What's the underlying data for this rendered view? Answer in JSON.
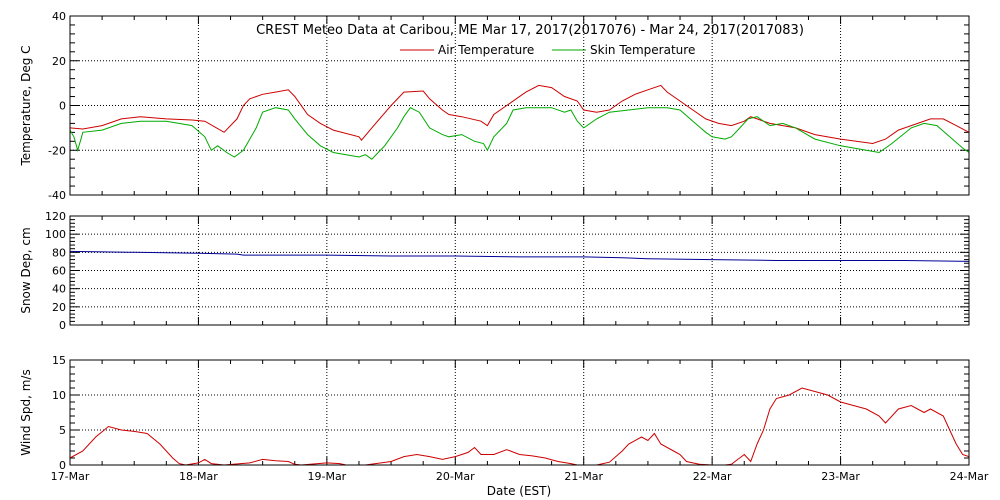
{
  "chart_data": {
    "type": "line",
    "title": "CREST Meteo Data at Caribou, ME   Mar 17, 2017(2017076) - Mar 24, 2017(2017083)",
    "xlabel": "Date (EST)",
    "x_ticks": [
      "17-Mar",
      "18-Mar",
      "19-Mar",
      "20-Mar",
      "21-Mar",
      "22-Mar",
      "23-Mar",
      "24-Mar"
    ],
    "x_range_days": [
      0,
      7
    ],
    "grid": true,
    "panels": [
      {
        "ylabel": "Temperature, Deg C",
        "ylim": [
          -40,
          40
        ],
        "yticks": [
          -40,
          -20,
          0,
          20,
          40
        ],
        "legend": "top-center",
        "series": [
          {
            "name": "Air Temperature",
            "color": "#cc0000",
            "points": [
              [
                0,
                -10
              ],
              [
                0.1,
                -10.5
              ],
              [
                0.25,
                -9
              ],
              [
                0.4,
                -6
              ],
              [
                0.55,
                -5
              ],
              [
                0.75,
                -6
              ],
              [
                0.95,
                -6.5
              ],
              [
                1.05,
                -7
              ],
              [
                1.2,
                -12
              ],
              [
                1.3,
                -6
              ],
              [
                1.35,
                0
              ],
              [
                1.4,
                3
              ],
              [
                1.5,
                5
              ],
              [
                1.6,
                6
              ],
              [
                1.7,
                7
              ],
              [
                1.75,
                4
              ],
              [
                1.85,
                -4
              ],
              [
                1.95,
                -8
              ],
              [
                2.05,
                -11
              ],
              [
                2.25,
                -14
              ],
              [
                2.27,
                -15.5
              ],
              [
                2.35,
                -10
              ],
              [
                2.5,
                0
              ],
              [
                2.6,
                6
              ],
              [
                2.75,
                6.5
              ],
              [
                2.8,
                3
              ],
              [
                2.9,
                -2
              ],
              [
                2.95,
                -4
              ],
              [
                3.05,
                -5
              ],
              [
                3.2,
                -7
              ],
              [
                3.25,
                -9
              ],
              [
                3.3,
                -4
              ],
              [
                3.4,
                0
              ],
              [
                3.55,
                6
              ],
              [
                3.65,
                9
              ],
              [
                3.75,
                8
              ],
              [
                3.85,
                4
              ],
              [
                3.95,
                2
              ],
              [
                4.0,
                -2
              ],
              [
                4.1,
                -3
              ],
              [
                4.2,
                -2
              ],
              [
                4.3,
                2
              ],
              [
                4.4,
                5
              ],
              [
                4.5,
                7
              ],
              [
                4.6,
                9
              ],
              [
                4.65,
                6
              ],
              [
                4.75,
                2
              ],
              [
                4.85,
                -2
              ],
              [
                4.95,
                -6
              ],
              [
                5.05,
                -8
              ],
              [
                5.15,
                -9
              ],
              [
                5.25,
                -7
              ],
              [
                5.3,
                -5
              ],
              [
                5.35,
                -6
              ],
              [
                5.45,
                -8
              ],
              [
                5.55,
                -9
              ],
              [
                5.65,
                -10
              ],
              [
                5.8,
                -13
              ],
              [
                6.0,
                -15
              ],
              [
                6.25,
                -17
              ],
              [
                6.35,
                -15
              ],
              [
                6.45,
                -11
              ],
              [
                6.55,
                -9
              ],
              [
                6.7,
                -6
              ],
              [
                6.8,
                -6
              ],
              [
                6.9,
                -9
              ],
              [
                7,
                -12
              ]
            ]
          },
          {
            "name": "Skin Temperature",
            "color": "#00aa00",
            "points": [
              [
                0,
                -11
              ],
              [
                0.03,
                -14
              ],
              [
                0.06,
                -20
              ],
              [
                0.09,
                -14
              ],
              [
                0.1,
                -12
              ],
              [
                0.25,
                -11
              ],
              [
                0.4,
                -8
              ],
              [
                0.55,
                -7
              ],
              [
                0.75,
                -7
              ],
              [
                0.95,
                -9
              ],
              [
                1.05,
                -14
              ],
              [
                1.1,
                -20
              ],
              [
                1.15,
                -18
              ],
              [
                1.22,
                -21
              ],
              [
                1.28,
                -23
              ],
              [
                1.35,
                -20
              ],
              [
                1.45,
                -10
              ],
              [
                1.5,
                -3
              ],
              [
                1.6,
                -1
              ],
              [
                1.7,
                -2
              ],
              [
                1.75,
                -6
              ],
              [
                1.85,
                -13
              ],
              [
                1.95,
                -18
              ],
              [
                2.05,
                -21
              ],
              [
                2.15,
                -22
              ],
              [
                2.25,
                -23
              ],
              [
                2.3,
                -22
              ],
              [
                2.35,
                -24
              ],
              [
                2.45,
                -18
              ],
              [
                2.55,
                -10
              ],
              [
                2.6,
                -5
              ],
              [
                2.65,
                -1
              ],
              [
                2.72,
                -3
              ],
              [
                2.8,
                -10
              ],
              [
                2.9,
                -13
              ],
              [
                2.95,
                -14
              ],
              [
                3.05,
                -13
              ],
              [
                3.15,
                -16
              ],
              [
                3.22,
                -17
              ],
              [
                3.25,
                -20
              ],
              [
                3.3,
                -14
              ],
              [
                3.4,
                -8
              ],
              [
                3.45,
                -2
              ],
              [
                3.55,
                -1
              ],
              [
                3.65,
                -1
              ],
              [
                3.75,
                -1
              ],
              [
                3.85,
                -3
              ],
              [
                3.9,
                -2
              ],
              [
                3.95,
                -7
              ],
              [
                4.0,
                -10
              ],
              [
                4.1,
                -6
              ],
              [
                4.2,
                -3
              ],
              [
                4.35,
                -2
              ],
              [
                4.5,
                -1
              ],
              [
                4.65,
                -1
              ],
              [
                4.75,
                -2
              ],
              [
                4.85,
                -7
              ],
              [
                4.95,
                -12
              ],
              [
                5.0,
                -14
              ],
              [
                5.1,
                -15
              ],
              [
                5.15,
                -14
              ],
              [
                5.2,
                -11
              ],
              [
                5.28,
                -6
              ],
              [
                5.35,
                -5
              ],
              [
                5.45,
                -9
              ],
              [
                5.55,
                -8
              ],
              [
                5.65,
                -10
              ],
              [
                5.8,
                -15
              ],
              [
                6.0,
                -18
              ],
              [
                6.2,
                -20
              ],
              [
                6.3,
                -21
              ],
              [
                6.4,
                -17
              ],
              [
                6.55,
                -10
              ],
              [
                6.65,
                -8
              ],
              [
                6.75,
                -9
              ],
              [
                6.85,
                -14
              ],
              [
                6.95,
                -19
              ],
              [
                7,
                -21
              ]
            ]
          }
        ]
      },
      {
        "ylabel": "Snow Dep, cm",
        "ylim": [
          0,
          120
        ],
        "yticks": [
          0,
          20,
          40,
          60,
          80,
          100,
          120
        ],
        "series": [
          {
            "name": "",
            "color": "#000099",
            "points": [
              [
                0,
                81
              ],
              [
                0.5,
                80
              ],
              [
                1,
                79
              ],
              [
                1.3,
                78
              ],
              [
                1.35,
                77
              ],
              [
                1.5,
                77
              ],
              [
                2,
                77
              ],
              [
                2.5,
                76
              ],
              [
                3,
                76
              ],
              [
                3.5,
                75
              ],
              [
                4,
                75
              ],
              [
                4.3,
                74
              ],
              [
                4.5,
                73
              ],
              [
                5,
                72
              ],
              [
                5.5,
                71
              ],
              [
                6,
                71
              ],
              [
                6.5,
                71
              ],
              [
                7,
                70
              ]
            ]
          }
        ]
      },
      {
        "ylabel": "Wind Spd, m/s",
        "ylim": [
          0,
          15
        ],
        "yticks": [
          0,
          5,
          10,
          15
        ],
        "series": [
          {
            "name": "",
            "color": "#cc0000",
            "points": [
              [
                0,
                1
              ],
              [
                0.1,
                2
              ],
              [
                0.2,
                4
              ],
              [
                0.3,
                5.5
              ],
              [
                0.4,
                5
              ],
              [
                0.5,
                4.8
              ],
              [
                0.6,
                4.5
              ],
              [
                0.7,
                3
              ],
              [
                0.8,
                1
              ],
              [
                0.85,
                0.2
              ],
              [
                0.9,
                0
              ],
              [
                1.0,
                0.3
              ],
              [
                1.05,
                0.8
              ],
              [
                1.1,
                0.2
              ],
              [
                1.2,
                0
              ],
              [
                1.4,
                0.3
              ],
              [
                1.5,
                0.8
              ],
              [
                1.6,
                0.6
              ],
              [
                1.7,
                0.5
              ],
              [
                1.75,
                0.1
              ],
              [
                1.8,
                0
              ],
              [
                2.0,
                0.3
              ],
              [
                2.1,
                0.2
              ],
              [
                2.15,
                0
              ],
              [
                2.3,
                0
              ],
              [
                2.5,
                0.5
              ],
              [
                2.6,
                1.2
              ],
              [
                2.7,
                1.5
              ],
              [
                2.8,
                1.2
              ],
              [
                2.9,
                0.8
              ],
              [
                3.0,
                1.2
              ],
              [
                3.1,
                1.8
              ],
              [
                3.15,
                2.5
              ],
              [
                3.2,
                1.5
              ],
              [
                3.3,
                1.5
              ],
              [
                3.4,
                2.2
              ],
              [
                3.5,
                1.5
              ],
              [
                3.6,
                1.3
              ],
              [
                3.7,
                1.0
              ],
              [
                3.8,
                0.5
              ],
              [
                3.9,
                0.2
              ],
              [
                3.95,
                0
              ],
              [
                4.1,
                0
              ],
              [
                4.2,
                0.4
              ],
              [
                4.3,
                2
              ],
              [
                4.35,
                3
              ],
              [
                4.45,
                4
              ],
              [
                4.5,
                3.5
              ],
              [
                4.55,
                4.5
              ],
              [
                4.6,
                3
              ],
              [
                4.7,
                2
              ],
              [
                4.75,
                1.5
              ],
              [
                4.8,
                0.5
              ],
              [
                4.9,
                0.1
              ],
              [
                5.0,
                0
              ],
              [
                5.1,
                0
              ],
              [
                5.15,
                0.1
              ],
              [
                5.2,
                0.8
              ],
              [
                5.25,
                1.5
              ],
              [
                5.3,
                0.5
              ],
              [
                5.35,
                3
              ],
              [
                5.4,
                5
              ],
              [
                5.45,
                8
              ],
              [
                5.5,
                9.5
              ],
              [
                5.6,
                10
              ],
              [
                5.7,
                11
              ],
              [
                5.8,
                10.5
              ],
              [
                5.9,
                10
              ],
              [
                6.0,
                9
              ],
              [
                6.1,
                8.5
              ],
              [
                6.2,
                8
              ],
              [
                6.3,
                7
              ],
              [
                6.35,
                6
              ],
              [
                6.45,
                8
              ],
              [
                6.55,
                8.5
              ],
              [
                6.65,
                7.5
              ],
              [
                6.7,
                8
              ],
              [
                6.8,
                7
              ],
              [
                6.85,
                5
              ],
              [
                6.9,
                3
              ],
              [
                6.95,
                1.5
              ],
              [
                7,
                1.2
              ]
            ]
          }
        ]
      }
    ]
  }
}
